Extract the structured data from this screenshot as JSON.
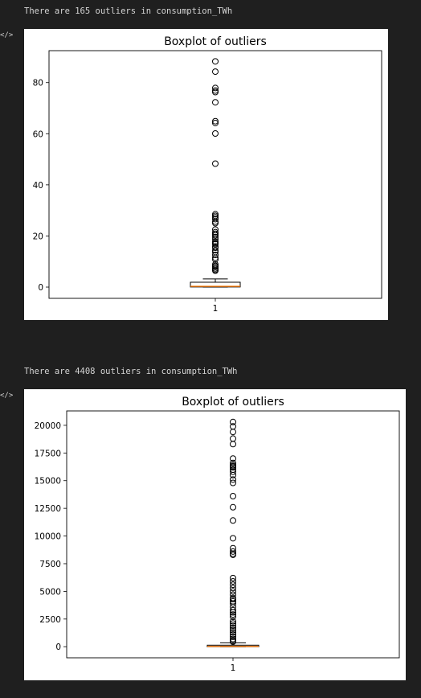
{
  "outputs": [
    {
      "message": "There are 165 outliers in consumption_TWh",
      "icon": "code-icon"
    },
    {
      "message": "There are 4408 outliers in consumption_TWh",
      "icon": "code-icon"
    }
  ],
  "chart_data": [
    {
      "type": "boxplot",
      "title": "Boxplot of outliers",
      "xlabel": "",
      "ylabel": "",
      "categories": [
        "1"
      ],
      "ylim": [
        -4.4,
        92.5
      ],
      "yticks": [
        0,
        20,
        40,
        60,
        80
      ],
      "box": {
        "whisker_low": 0.0,
        "q1": 0.05,
        "median": 0.3,
        "q3": 1.9,
        "whisker_high": 3.2
      },
      "outliers": [
        88.3,
        84.3,
        77.9,
        76.9,
        76.3,
        72.3,
        64.9,
        64.2,
        60.1,
        48.3,
        28.5,
        27.9,
        27.3,
        26.6,
        25.6,
        25.0,
        22.5,
        21.5,
        20.9,
        20.3,
        19.6,
        18.8,
        17.8,
        17.2,
        16.8,
        15.9,
        15.4,
        14.4,
        13.7,
        12.6,
        11.5,
        10.8,
        8.9,
        8.3,
        7.9,
        7.3,
        6.8,
        6.4
      ],
      "colors": {
        "box": "#000000",
        "median": "#ff7f0e",
        "outlier_edge": "#000000"
      }
    },
    {
      "type": "boxplot",
      "title": "Boxplot of outliers",
      "xlabel": "",
      "ylabel": "",
      "categories": [
        "1"
      ],
      "ylim": [
        -1000,
        21300
      ],
      "yticks": [
        0,
        2500,
        5000,
        7500,
        10000,
        12500,
        15000,
        17500,
        20000
      ],
      "box": {
        "whisker_low": 0,
        "q1": 0,
        "median": 30,
        "q3": 140,
        "whisker_high": 350
      },
      "outliers": [
        20300,
        19900,
        19400,
        18800,
        18300,
        17000,
        16600,
        16400,
        16300,
        16200,
        16000,
        15800,
        15500,
        15100,
        14800,
        13600,
        12600,
        11400,
        9800,
        8900,
        8600,
        8400,
        8300,
        6200,
        5900,
        5600,
        5300,
        5000,
        4700,
        4400,
        4300,
        4100,
        3900,
        3600,
        3300,
        3100,
        2900,
        2700,
        2300,
        2100,
        1900,
        1700,
        1500,
        1300,
        1100,
        900,
        700,
        550,
        450
      ],
      "colors": {
        "box": "#000000",
        "median": "#ff7f0e",
        "outlier_edge": "#000000"
      }
    }
  ]
}
